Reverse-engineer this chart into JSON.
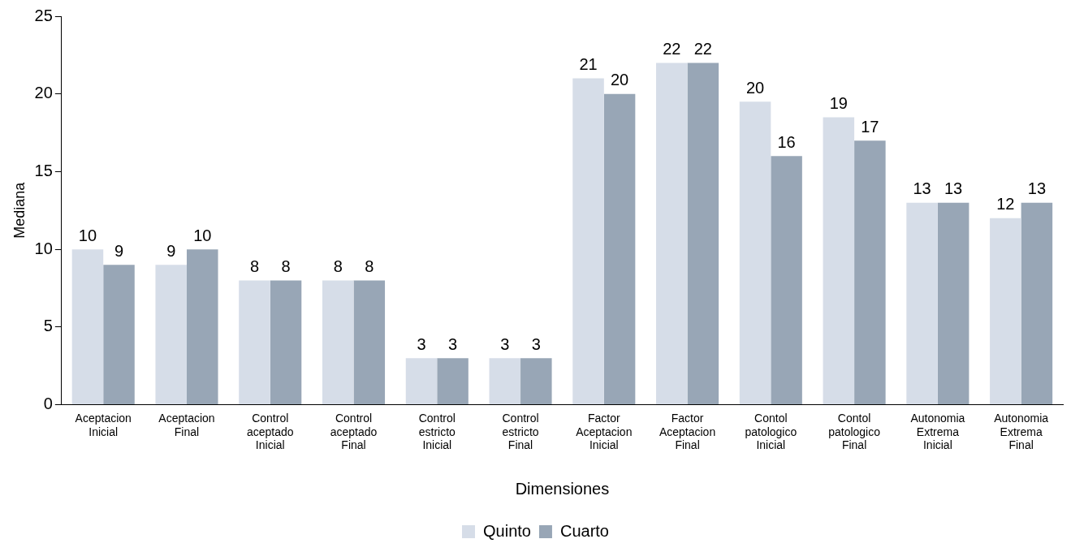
{
  "chart_data": {
    "type": "bar",
    "xlabel": "Dimensiones",
    "ylabel": "Mediana",
    "categories": [
      "Aceptacion Inicial",
      "Aceptacion Final",
      "Control aceptado Inicial",
      "Control aceptado Final",
      "Control estricto Inicial",
      "Control estricto Final",
      "Factor Aceptacion Inicial",
      "Factor Aceptacion Final",
      "Contol patologico Inicial",
      "Contol patologico Final",
      "Autonomia Extrema Inicial",
      "Autonomia Extrema Final"
    ],
    "series": [
      {
        "name": "Quinto",
        "color": "#d6dde8",
        "values": [
          10,
          9,
          8,
          8,
          3,
          3,
          21,
          22,
          19.5,
          18.5,
          13,
          12
        ],
        "value_labels": [
          "10",
          "9",
          "8",
          "8",
          "3",
          "3",
          "21",
          "22",
          "20",
          "19",
          "13",
          "12"
        ]
      },
      {
        "name": "Cuarto",
        "color": "#98a6b6",
        "values": [
          9,
          10,
          8,
          8,
          3,
          3,
          20,
          22,
          16,
          17,
          13,
          13
        ],
        "value_labels": [
          "9",
          "10",
          "8",
          "8",
          "3",
          "3",
          "20",
          "22",
          "16",
          "17",
          "13",
          "13"
        ]
      }
    ],
    "ylim": [
      0,
      25
    ],
    "yticks": [
      0,
      5,
      10,
      15,
      20,
      25
    ],
    "grid": false,
    "legend": "bottom"
  }
}
